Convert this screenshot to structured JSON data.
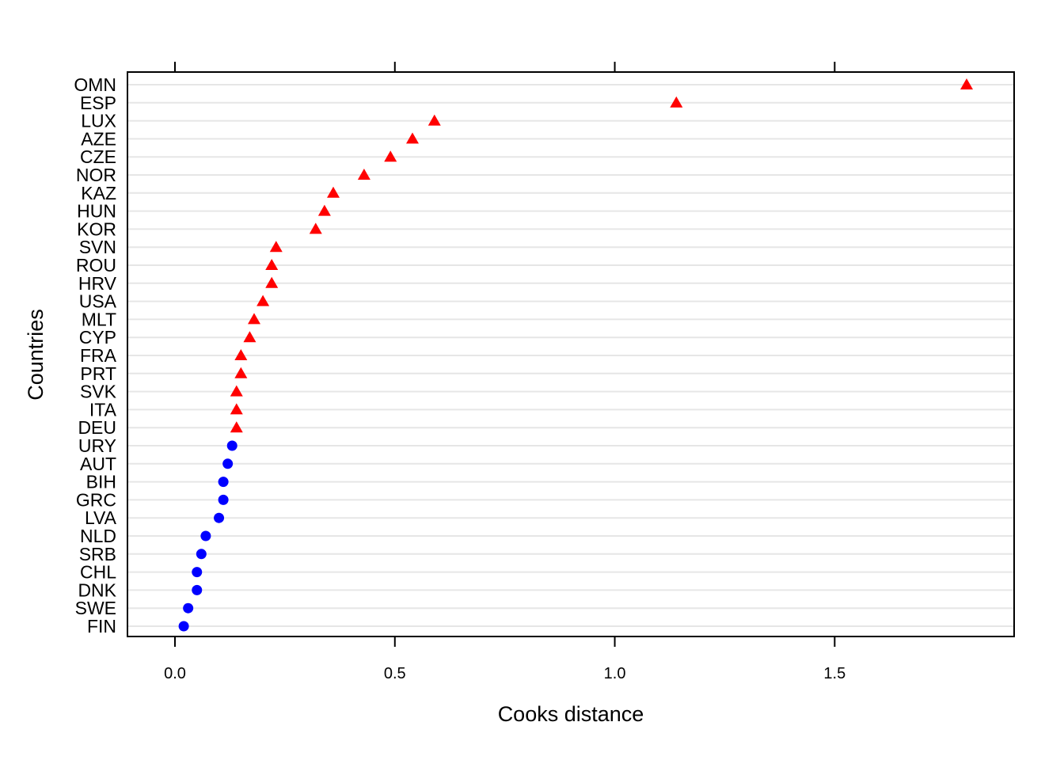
{
  "chart_data": {
    "type": "scatter",
    "title": "",
    "xlabel": "Cooks distance",
    "ylabel": "Countries",
    "xlim": [
      -0.108,
      1.908
    ],
    "x_ticks": [
      0.0,
      0.5,
      1.0,
      1.5
    ],
    "x_tick_labels": [
      "0.0",
      "0.5",
      "1.0",
      "1.5"
    ],
    "grid": "horizontal",
    "categories": [
      "OMN",
      "ESP",
      "LUX",
      "AZE",
      "CZE",
      "NOR",
      "KAZ",
      "HUN",
      "KOR",
      "SVN",
      "ROU",
      "HRV",
      "USA",
      "MLT",
      "CYP",
      "FRA",
      "PRT",
      "SVK",
      "ITA",
      "DEU",
      "URY",
      "AUT",
      "BIH",
      "GRC",
      "LVA",
      "NLD",
      "SRB",
      "CHL",
      "DNK",
      "SWE",
      "FIN"
    ],
    "values": [
      1.8,
      1.14,
      0.59,
      0.54,
      0.49,
      0.43,
      0.36,
      0.34,
      0.32,
      0.23,
      0.22,
      0.22,
      0.2,
      0.18,
      0.17,
      0.15,
      0.15,
      0.14,
      0.14,
      0.14,
      0.13,
      0.12,
      0.11,
      0.11,
      0.1,
      0.07,
      0.06,
      0.05,
      0.05,
      0.03,
      0.02
    ],
    "groups": [
      "high",
      "high",
      "high",
      "high",
      "high",
      "high",
      "high",
      "high",
      "high",
      "high",
      "high",
      "high",
      "high",
      "high",
      "high",
      "high",
      "high",
      "high",
      "high",
      "high",
      "low",
      "low",
      "low",
      "low",
      "low",
      "low",
      "low",
      "low",
      "low",
      "low",
      "low"
    ],
    "markers": {
      "high": "triangle",
      "low": "circle"
    },
    "colors": {
      "high": "#ff0000",
      "low": "#0000ff",
      "grid": "#e6e6e6",
      "axis": "#000000"
    }
  }
}
